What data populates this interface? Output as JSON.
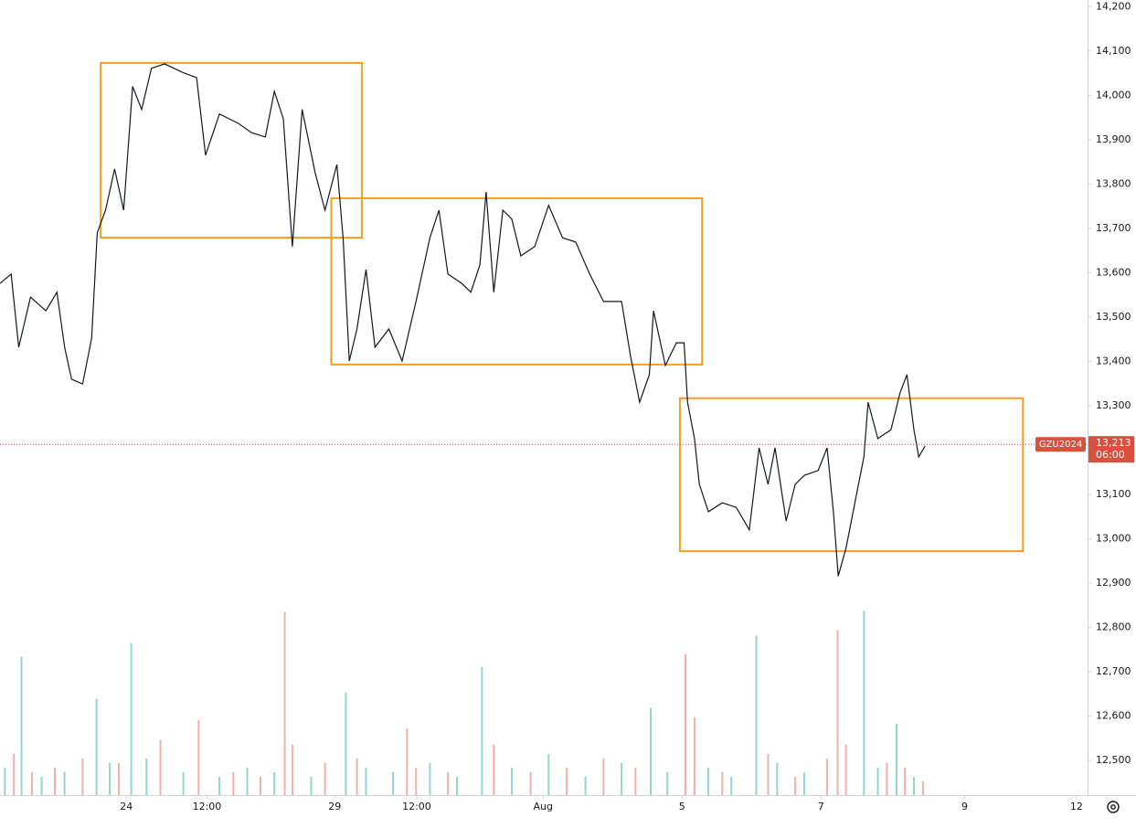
{
  "chart_data": {
    "type": "line",
    "color": "#131722",
    "x": [
      -1.82,
      -1.66,
      -1.55,
      -1.38,
      -1.16,
      -1.0,
      -0.89,
      -0.79,
      -0.63,
      -0.5,
      -0.42,
      -0.3,
      -0.17,
      -0.04,
      0.09,
      0.22,
      0.36,
      0.55,
      0.82,
      1.01,
      1.14,
      1.34,
      1.61,
      1.8,
      2.0,
      2.13,
      2.26,
      2.39,
      2.53,
      2.72,
      2.86,
      3.03,
      3.12,
      3.21,
      3.32,
      3.45,
      3.58,
      3.78,
      3.97,
      4.17,
      4.37,
      4.5,
      4.63,
      4.83,
      4.96,
      5.09,
      5.18,
      5.29,
      5.42,
      5.55,
      5.68,
      5.88,
      6.08,
      6.28,
      6.47,
      6.67,
      6.87,
      7.13,
      7.26,
      7.39,
      7.53,
      7.59,
      7.76,
      7.92,
      8.03,
      8.08,
      8.18,
      8.25,
      8.38,
      8.58,
      8.78,
      8.97,
      9.11,
      9.24,
      9.34,
      9.5,
      9.63,
      9.76,
      9.96,
      10.09,
      10.18,
      10.25,
      10.36,
      10.49,
      10.62,
      10.68,
      10.82,
      11.01,
      11.14,
      11.24,
      11.34,
      11.41,
      11.5
    ],
    "values": [
      13576,
      13597,
      13432,
      13545,
      13514,
      13556,
      13432,
      13360,
      13349,
      13453,
      13690,
      13741,
      13834,
      13741,
      14020,
      13968,
      14061,
      14071,
      14051,
      14040,
      13865,
      13958,
      13937,
      13916,
      13906,
      14009,
      13947,
      13659,
      13968,
      13824,
      13741,
      13844,
      13679,
      13401,
      13473,
      13607,
      13432,
      13473,
      13401,
      13535,
      13679,
      13741,
      13597,
      13576,
      13556,
      13618,
      13782,
      13556,
      13741,
      13721,
      13638,
      13659,
      13752,
      13679,
      13669,
      13597,
      13535,
      13535,
      13411,
      13308,
      13370,
      13514,
      13391,
      13442,
      13442,
      13308,
      13226,
      13123,
      13061,
      13081,
      13071,
      13020,
      13205,
      13123,
      13205,
      13040,
      13123,
      13143,
      13154,
      13205,
      13061,
      12916,
      12978,
      13081,
      13185,
      13308,
      13226,
      13246,
      13329,
      13370,
      13246,
      13185,
      13209
    ],
    "xlim": [
      -1.82,
      13.84
    ],
    "xticks": [
      {
        "value": 0,
        "label": "24"
      },
      {
        "value": 1.16,
        "label": "12:00"
      },
      {
        "value": 3,
        "label": "29"
      },
      {
        "value": 4.18,
        "label": "12:00"
      },
      {
        "value": 6,
        "label": "Aug"
      },
      {
        "value": 8,
        "label": "5"
      },
      {
        "value": 10,
        "label": "7"
      },
      {
        "value": 12.07,
        "label": "9"
      },
      {
        "value": 13.68,
        "label": "12"
      }
    ],
    "ylim": [
      12422,
      14215
    ],
    "yticks": [
      {
        "value": 12500,
        "label": "12,500"
      },
      {
        "value": 12600,
        "label": "12,600"
      },
      {
        "value": 12700,
        "label": "12,700"
      },
      {
        "value": 12800,
        "label": "12,800"
      },
      {
        "value": 12900,
        "label": "12,900"
      },
      {
        "value": 13000,
        "label": "13,000"
      },
      {
        "value": 13100,
        "label": "13,100"
      },
      {
        "value": 13200,
        "label": "13,200"
      },
      {
        "value": 13300,
        "label": "13,300"
      },
      {
        "value": 13400,
        "label": "13,400"
      },
      {
        "value": 13500,
        "label": "13,500"
      },
      {
        "value": 13600,
        "label": "13,600"
      },
      {
        "value": 13700,
        "label": "13,700"
      },
      {
        "value": 13800,
        "label": "13,800"
      },
      {
        "value": 13900,
        "label": "13,900"
      },
      {
        "value": 14000,
        "label": "14,000"
      },
      {
        "value": 14100,
        "label": "14,100"
      },
      {
        "value": 14200,
        "label": "14,200"
      }
    ],
    "boxes": [
      {
        "color": "#f59d1e",
        "x": [
          -0.37,
          3.39
        ],
        "y": [
          13679,
          14073
        ]
      },
      {
        "color": "#f59d1e",
        "x": [
          2.95,
          8.29
        ],
        "y": [
          13393,
          13768
        ]
      },
      {
        "color": "#f59d1e",
        "x": [
          7.97,
          12.91
        ],
        "y": [
          12972,
          13317
        ]
      }
    ],
    "last_price": {
      "symbol": "GZU2024",
      "value": 13213,
      "label": "13,213",
      "countdown": "06:00",
      "color": "#d9503f"
    },
    "volume_ylim": [
      0,
      434
    ],
    "volume_up": {
      "color": "#7fcfc9",
      "x": [
        -1.75,
        -1.51,
        -1.22,
        -0.89,
        -0.43,
        -0.24,
        0.07,
        0.29,
        0.82,
        1.34,
        1.74,
        2.13,
        2.66,
        3.16,
        3.45,
        3.84,
        4.37,
        4.76,
        5.12,
        5.55,
        6.08,
        6.61,
        7.13,
        7.55,
        7.79,
        8.38,
        8.71,
        9.07,
        9.37,
        9.76,
        10.62,
        10.82,
        11.09,
        11.34
      ],
      "values": [
        15,
        75.5,
        10,
        12.5,
        52.5,
        17.5,
        83,
        20,
        12.5,
        10,
        15,
        12.5,
        10,
        56,
        15,
        12.5,
        17.5,
        10,
        70,
        15,
        22.5,
        10,
        17.5,
        47.5,
        12.5,
        15,
        10,
        87,
        17.5,
        12.5,
        100.5,
        15,
        39,
        10
      ]
    },
    "volume_down": {
      "color": "#f3a19b",
      "x": [
        -1.62,
        -1.36,
        -1.03,
        -0.63,
        -0.11,
        0.49,
        1.04,
        1.54,
        1.93,
        2.28,
        2.39,
        2.86,
        3.32,
        4.04,
        4.17,
        4.63,
        5.29,
        5.82,
        6.34,
        6.87,
        7.33,
        8.05,
        8.18,
        8.58,
        9.24,
        9.63,
        10.09,
        10.24,
        10.36,
        10.95,
        11.21,
        11.47
      ],
      "values": [
        22.5,
        12.5,
        15,
        20,
        17.5,
        30,
        41,
        12.5,
        10,
        100,
        27.5,
        17.5,
        20,
        36.5,
        15,
        12.5,
        27.5,
        12.5,
        15,
        20,
        15,
        77,
        42.5,
        12.5,
        22.5,
        10,
        20,
        90,
        27.5,
        17.5,
        15,
        7.5
      ]
    }
  }
}
